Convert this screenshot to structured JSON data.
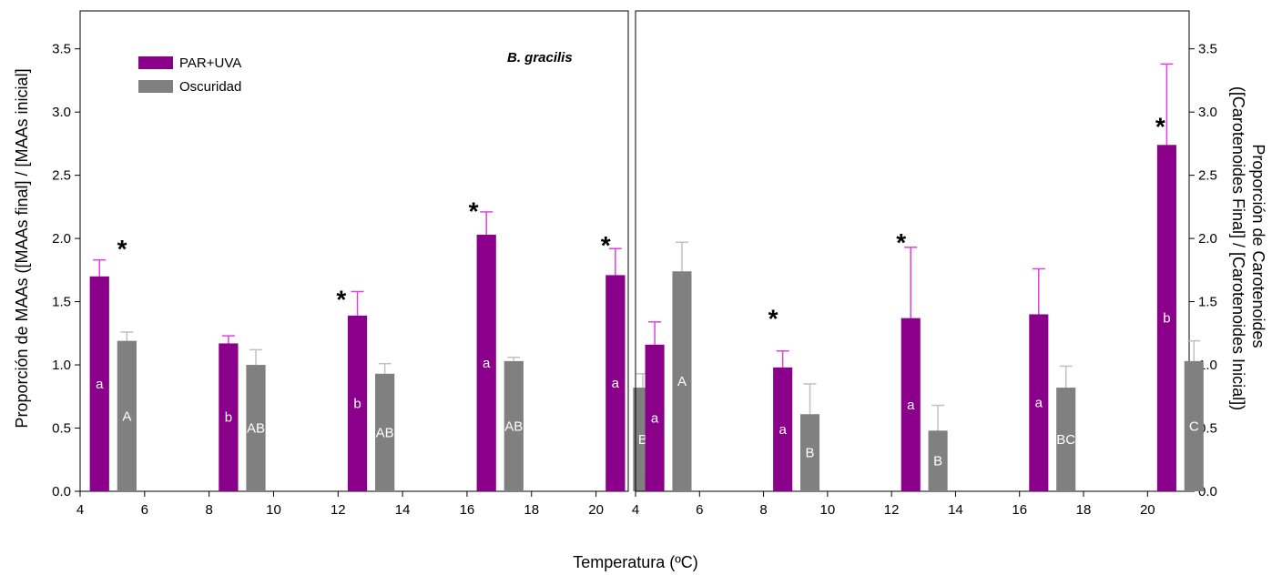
{
  "colors": {
    "par_uva": "#8B008B",
    "par_uva_err": "#E040E0",
    "dark": "#808080",
    "dark_err": "#C0C0C0"
  },
  "legend": {
    "items": [
      "PAR+UVA",
      "Oscuridad"
    ]
  },
  "xlabel": "Temperatura (ºC)",
  "chart_data": [
    {
      "type": "bar",
      "panel": "left",
      "annotation": "B. gracilis",
      "ylabel": "Proporción de MAAs ([MAAs final] / [MAAs inicial]",
      "ylim": [
        0,
        3.8
      ],
      "yticks": [
        "0.0",
        "0.5",
        "1.0",
        "1.5",
        "2.0",
        "2.5",
        "3.0",
        "3.5"
      ],
      "xlim": [
        4,
        21
      ],
      "xticks": [
        "4",
        "6",
        "8",
        "10",
        "12",
        "14",
        "16",
        "18",
        "20"
      ],
      "categories": [
        4,
        8,
        12,
        16,
        20
      ],
      "series": [
        {
          "name": "PAR+UVA",
          "values": [
            1.7,
            1.17,
            1.39,
            2.03,
            1.71
          ],
          "errors": [
            0.13,
            0.06,
            0.19,
            0.18,
            0.21
          ],
          "labels": [
            "a",
            "b",
            "b",
            "a",
            "a"
          ]
        },
        {
          "name": "Oscuridad",
          "values": [
            1.19,
            1.0,
            0.93,
            1.03,
            0.82
          ],
          "errors": [
            0.07,
            0.12,
            0.08,
            0.03,
            0.11
          ],
          "labels": [
            "A",
            "AB",
            "AB",
            "AB",
            "B"
          ]
        }
      ],
      "stars": [
        {
          "x": 5.3,
          "y": 1.95
        },
        {
          "x": 12.1,
          "y": 1.55
        },
        {
          "x": 16.2,
          "y": 2.25
        },
        {
          "x": 20.3,
          "y": 1.98
        }
      ]
    },
    {
      "type": "bar",
      "panel": "right",
      "ylabel": "Proporción de Carotenoides ([Carotenoides Final] / [Carotenoides Inicial])",
      "ylim": [
        0,
        3.8
      ],
      "yticks": [
        "0.0",
        "0.5",
        "1.0",
        "1.5",
        "2.0",
        "2.5",
        "3.0",
        "3.5"
      ],
      "xlim": [
        4,
        21.3
      ],
      "xticks": [
        "4",
        "6",
        "8",
        "10",
        "12",
        "14",
        "16",
        "18",
        "20"
      ],
      "categories": [
        4,
        8,
        12,
        16,
        20
      ],
      "series": [
        {
          "name": "PAR+UVA",
          "values": [
            1.16,
            0.98,
            1.37,
            1.4,
            2.74
          ],
          "errors": [
            0.18,
            0.13,
            0.56,
            0.36,
            0.64
          ],
          "labels": [
            "a",
            "a",
            "a",
            "a",
            "b"
          ]
        },
        {
          "name": "Oscuridad",
          "values": [
            1.74,
            0.61,
            0.48,
            0.82,
            1.03
          ],
          "errors": [
            0.23,
            0.24,
            0.2,
            0.17,
            0.16
          ],
          "labels": [
            "A",
            "B",
            "B",
            "BC",
            "C"
          ]
        }
      ],
      "stars": [
        {
          "x": 8.3,
          "y": 1.4
        },
        {
          "x": 12.3,
          "y": 2.0
        },
        {
          "x": 20.4,
          "y": 2.92
        }
      ]
    }
  ]
}
